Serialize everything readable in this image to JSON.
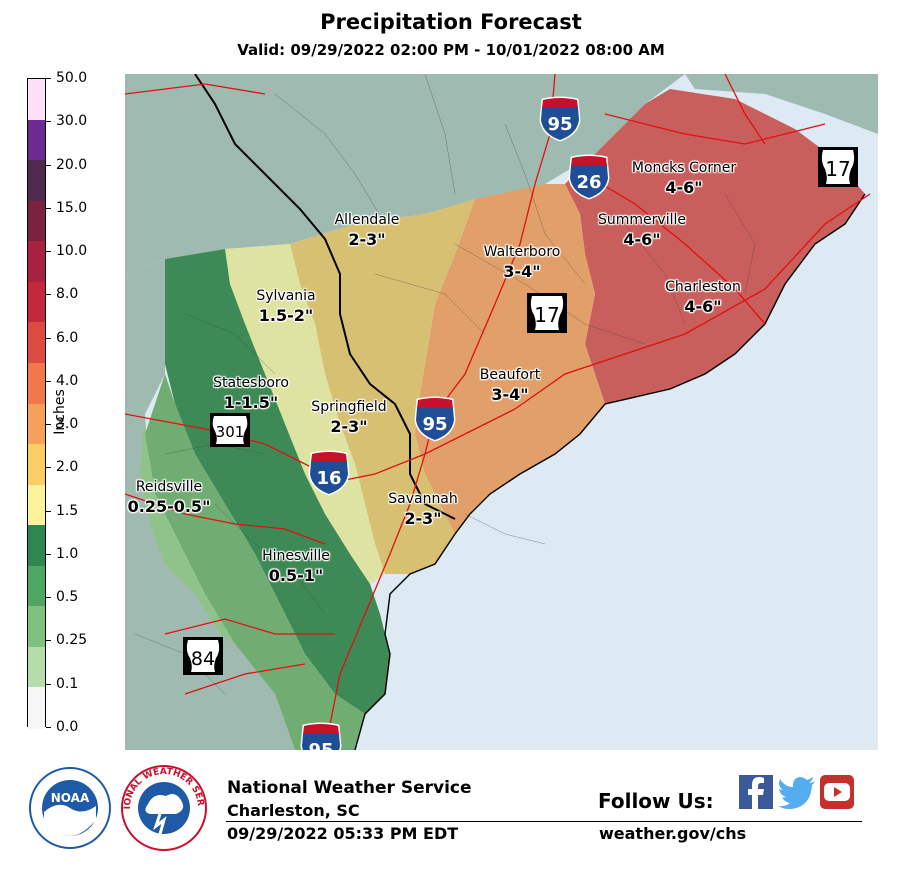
{
  "title": "Precipitation Forecast",
  "valid": "Valid: 09/29/2022 02:00 PM - 10/01/2022 08:00 AM",
  "colorbar": {
    "unit": "Inches",
    "labels": [
      "50.0",
      "30.0",
      "20.0",
      "15.0",
      "10.0",
      "8.0",
      "6.0",
      "4.0",
      "3.0",
      "2.0",
      "1.5",
      "1.0",
      "0.5",
      "0.25",
      "0.1",
      "0.0"
    ],
    "colors": [
      "#fde0f7",
      "#6c2a93",
      "#4f2a4d",
      "#7a2240",
      "#a8213f",
      "#c4283c",
      "#dd4a3f",
      "#f2774d",
      "#f7a05b",
      "#fbcd64",
      "#fef39d",
      "#2f8650",
      "#4fa564",
      "#7fc27d",
      "#b5ddaa",
      "#f6f6f6"
    ]
  },
  "map": {
    "colors": {
      "water": "#dde9f3",
      "land_outside": "#9fbab0",
      "zone_46": "#c95f5c",
      "zone_34": "#e1a06a",
      "zone_23": "#d8c073",
      "zone_152": "#dfe3a2",
      "zone_115": "#3e8a56",
      "zone_051": "#71ad73",
      "zone_025": "#8fc38a"
    },
    "cities": [
      {
        "name": "Moncks Corner",
        "amount": "4-6\""
      },
      {
        "name": "Summerville",
        "amount": "4-6\""
      },
      {
        "name": "Charleston",
        "amount": "4-6\""
      },
      {
        "name": "Allendale",
        "amount": "2-3\""
      },
      {
        "name": "Walterboro",
        "amount": "3-4\""
      },
      {
        "name": "Sylvania",
        "amount": "1.5-2\""
      },
      {
        "name": "Beaufort",
        "amount": "3-4\""
      },
      {
        "name": "Statesboro",
        "amount": "1-1.5\""
      },
      {
        "name": "Springfield",
        "amount": "2-3\""
      },
      {
        "name": "Reidsville",
        "amount": "0.25-0.5\""
      },
      {
        "name": "Savannah",
        "amount": "2-3\""
      },
      {
        "name": "Hinesville",
        "amount": "0.5-1\""
      }
    ],
    "highways": {
      "i95_top": "95",
      "i26": "26",
      "us17_right": "17",
      "us17_mid": "17",
      "i95_mid": "95",
      "us301": "301",
      "i16": "16",
      "us84": "84",
      "i95_bottom": "95",
      "interstate_header": "INTERSTATE"
    }
  },
  "footer": {
    "agency": "National Weather Service",
    "office": "Charleston, SC",
    "issued": "09/29/2022 05:33 PM EDT",
    "follow": "Follow Us:",
    "website": "weather.gov/chs",
    "noaa_text": "NOAA",
    "nws_seal_text": "NATIONAL WEATHER SERVICE"
  }
}
